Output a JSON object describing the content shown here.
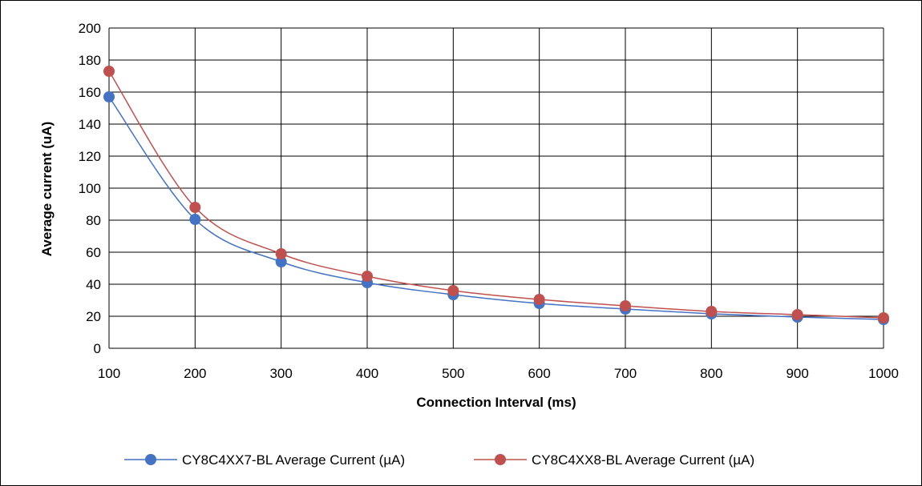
{
  "chart_data": {
    "type": "line",
    "xlabel": "Connection Interval (ms)",
    "ylabel": "Average current (uA)",
    "categories": [
      "100",
      "200",
      "300",
      "400",
      "500",
      "600",
      "700",
      "800",
      "900",
      "1000"
    ],
    "x": [
      100,
      200,
      300,
      400,
      500,
      600,
      700,
      800,
      900,
      1000
    ],
    "xlim": [
      100,
      1000
    ],
    "ylim": [
      0,
      200
    ],
    "yticks": [
      "0",
      "20",
      "40",
      "60",
      "80",
      "100",
      "120",
      "140",
      "160",
      "180",
      "200"
    ],
    "grid": true,
    "smooth": true,
    "legend_position": "bottom",
    "series": [
      {
        "name": "CY8C4XX7-BL Average Current (µA)",
        "color": "#4472C4",
        "values": [
          157,
          80.5,
          54,
          41,
          33.5,
          28,
          24.5,
          21.5,
          19.5,
          18
        ]
      },
      {
        "name": "CY8C4XX8-BL Average Current (µA)",
        "color": "#C0504D",
        "values": [
          173,
          88,
          59,
          45,
          36,
          30.5,
          26.5,
          23,
          21,
          19
        ]
      }
    ]
  }
}
